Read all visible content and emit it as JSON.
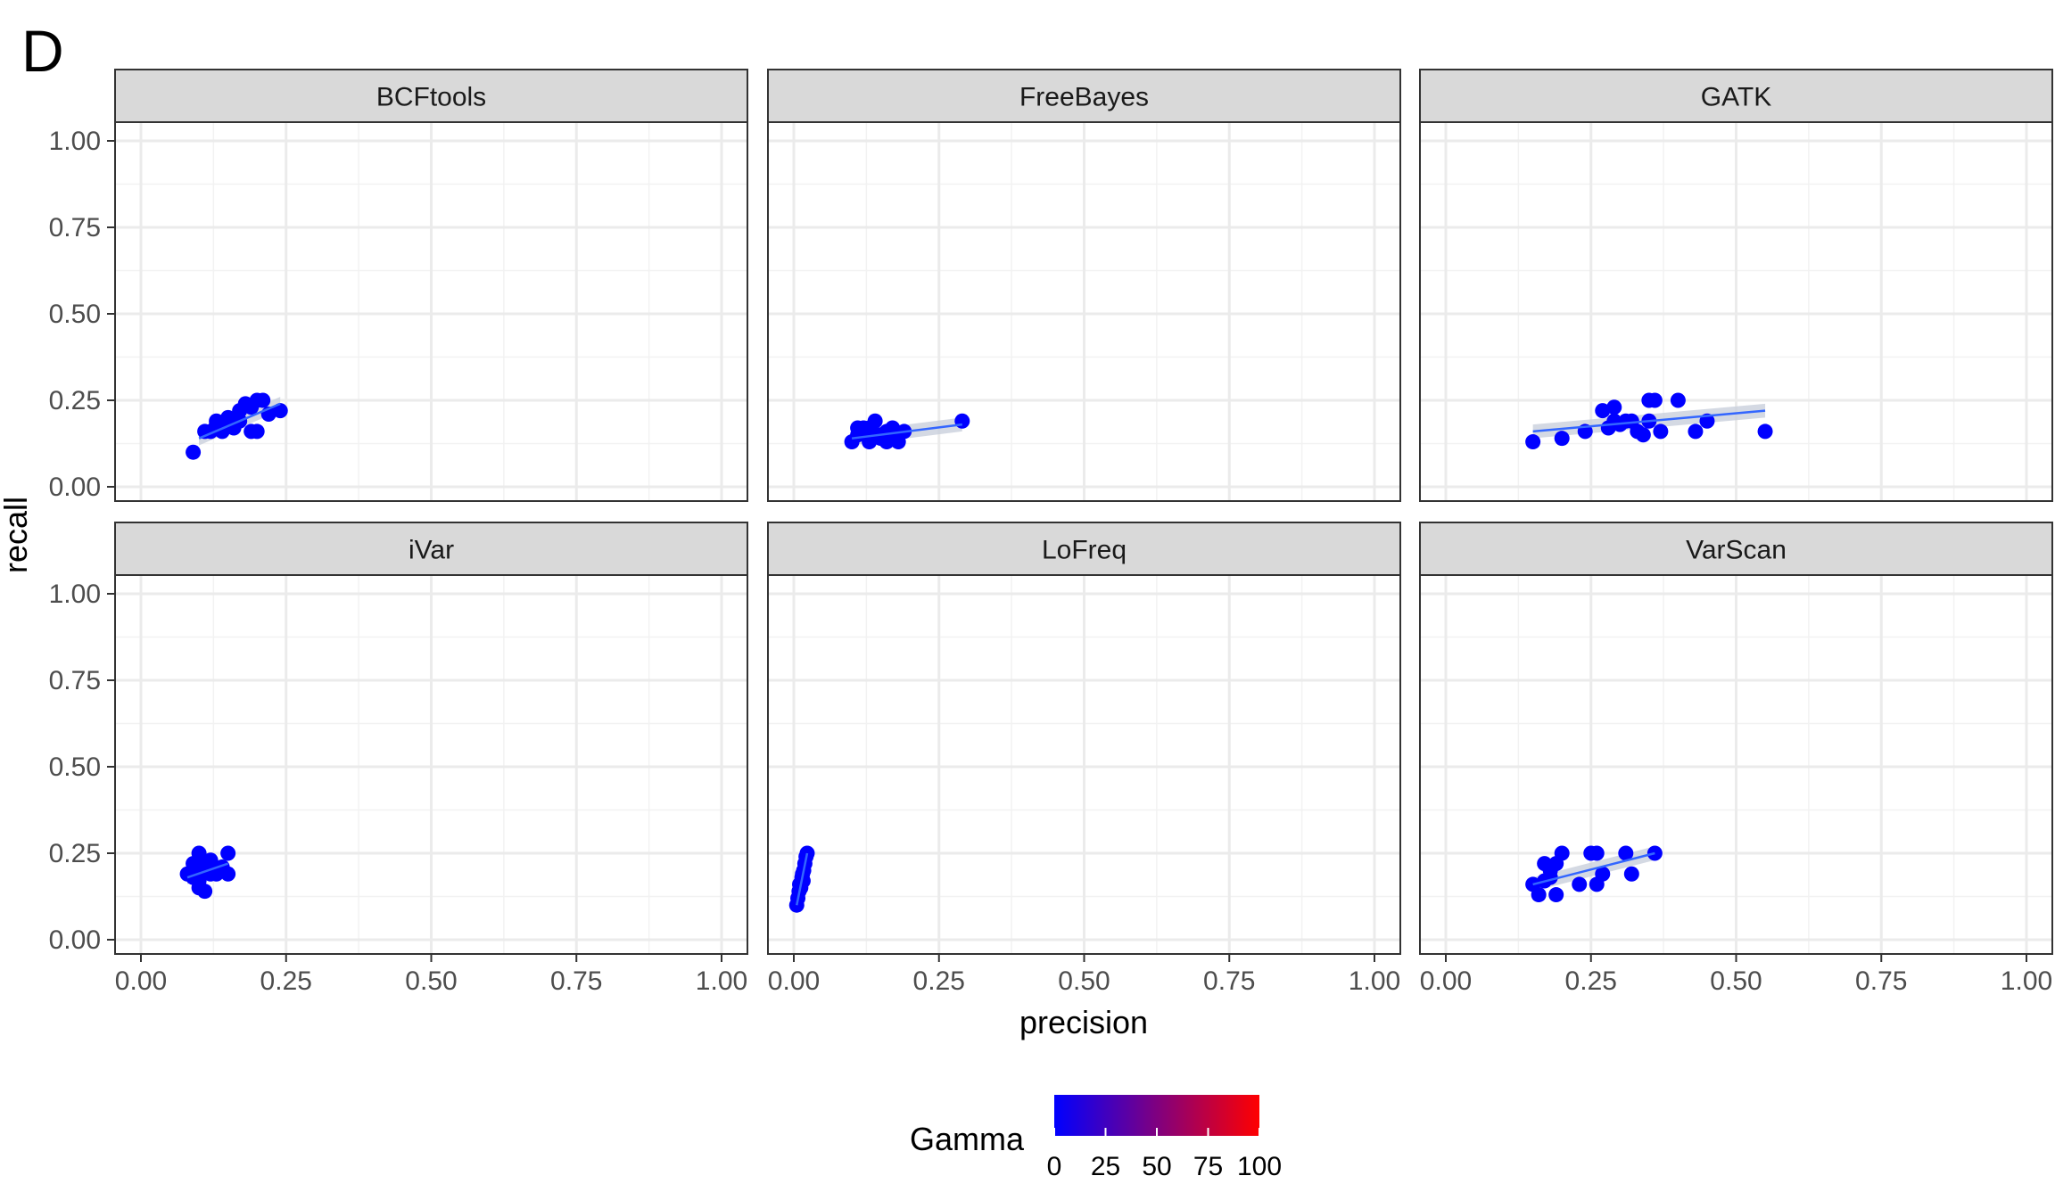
{
  "panel_tag": "D",
  "chart_data": {
    "type": "scatter",
    "facets": [
      "BCFtools",
      "FreeBayes",
      "GATK",
      "iVar",
      "LoFreq",
      "VarScan"
    ],
    "xlabel": "precision",
    "ylabel": "recall",
    "xlim": [
      0,
      1
    ],
    "ylim": [
      0,
      1
    ],
    "x_ticks": [
      "0.00",
      "0.25",
      "0.50",
      "0.75",
      "1.00"
    ],
    "y_ticks": [
      "0.00",
      "0.25",
      "0.50",
      "0.75",
      "1.00"
    ],
    "grid": true,
    "trend_line": "linear fit with confidence band",
    "point_color": "#0000ff",
    "line_color": "#3366ff",
    "band_color": "#c9cfdc",
    "legend": {
      "title": "Gamma",
      "type": "colorbar",
      "ticks": [
        "0",
        "25",
        "50",
        "75",
        "100"
      ],
      "range": [
        0,
        100
      ],
      "low_color": "#0000ff",
      "high_color": "#ff0000",
      "placement": "bottom"
    },
    "series": [
      {
        "name": "BCFtools",
        "x": [
          0.09,
          0.12,
          0.13,
          0.13,
          0.14,
          0.15,
          0.15,
          0.16,
          0.17,
          0.18,
          0.19,
          0.2,
          0.2,
          0.21,
          0.22,
          0.24,
          0.11,
          0.17,
          0.19
        ],
        "y": [
          0.1,
          0.16,
          0.18,
          0.19,
          0.16,
          0.2,
          0.18,
          0.17,
          0.19,
          0.24,
          0.16,
          0.25,
          0.16,
          0.25,
          0.21,
          0.22,
          0.16,
          0.22,
          0.23
        ],
        "fit": [
          [
            0.1,
            0.14
          ],
          [
            0.24,
            0.24
          ]
        ]
      },
      {
        "name": "FreeBayes",
        "x": [
          0.1,
          0.11,
          0.12,
          0.12,
          0.13,
          0.13,
          0.14,
          0.15,
          0.15,
          0.16,
          0.17,
          0.17,
          0.18,
          0.19,
          0.29,
          0.11,
          0.14,
          0.16
        ],
        "y": [
          0.13,
          0.15,
          0.16,
          0.17,
          0.13,
          0.17,
          0.19,
          0.15,
          0.14,
          0.13,
          0.17,
          0.15,
          0.13,
          0.16,
          0.19,
          0.17,
          0.15,
          0.16
        ],
        "fit": [
          [
            0.1,
            0.14
          ],
          [
            0.29,
            0.18
          ]
        ]
      },
      {
        "name": "GATK",
        "x": [
          0.15,
          0.2,
          0.24,
          0.27,
          0.28,
          0.29,
          0.29,
          0.3,
          0.31,
          0.32,
          0.33,
          0.34,
          0.35,
          0.35,
          0.36,
          0.37,
          0.4,
          0.43,
          0.45,
          0.55
        ],
        "y": [
          0.13,
          0.14,
          0.16,
          0.22,
          0.17,
          0.23,
          0.19,
          0.18,
          0.19,
          0.19,
          0.16,
          0.15,
          0.25,
          0.19,
          0.25,
          0.16,
          0.25,
          0.16,
          0.19,
          0.16
        ],
        "fit": [
          [
            0.15,
            0.16
          ],
          [
            0.55,
            0.22
          ]
        ]
      },
      {
        "name": "iVar",
        "x": [
          0.08,
          0.09,
          0.09,
          0.1,
          0.1,
          0.1,
          0.11,
          0.11,
          0.12,
          0.12,
          0.13,
          0.14,
          0.15,
          0.15,
          0.1,
          0.12
        ],
        "y": [
          0.19,
          0.22,
          0.18,
          0.25,
          0.15,
          0.2,
          0.22,
          0.14,
          0.19,
          0.21,
          0.19,
          0.21,
          0.25,
          0.19,
          0.17,
          0.23
        ],
        "fit": [
          [
            0.08,
            0.18
          ],
          [
            0.15,
            0.22
          ]
        ]
      },
      {
        "name": "LoFreq",
        "x": [
          0.005,
          0.007,
          0.009,
          0.01,
          0.012,
          0.014,
          0.015,
          0.017,
          0.019,
          0.021,
          0.023,
          0.016
        ],
        "y": [
          0.1,
          0.12,
          0.14,
          0.16,
          0.15,
          0.18,
          0.19,
          0.2,
          0.22,
          0.24,
          0.25,
          0.17
        ],
        "fit": [
          [
            0.005,
            0.1
          ],
          [
            0.023,
            0.25
          ]
        ]
      },
      {
        "name": "VarScan",
        "x": [
          0.15,
          0.16,
          0.17,
          0.17,
          0.18,
          0.19,
          0.19,
          0.2,
          0.23,
          0.25,
          0.26,
          0.26,
          0.27,
          0.31,
          0.32,
          0.36,
          0.18
        ],
        "y": [
          0.16,
          0.13,
          0.22,
          0.17,
          0.2,
          0.13,
          0.22,
          0.25,
          0.16,
          0.25,
          0.25,
          0.16,
          0.19,
          0.25,
          0.19,
          0.25,
          0.18
        ],
        "fit": [
          [
            0.15,
            0.16
          ],
          [
            0.36,
            0.25
          ]
        ]
      }
    ]
  }
}
